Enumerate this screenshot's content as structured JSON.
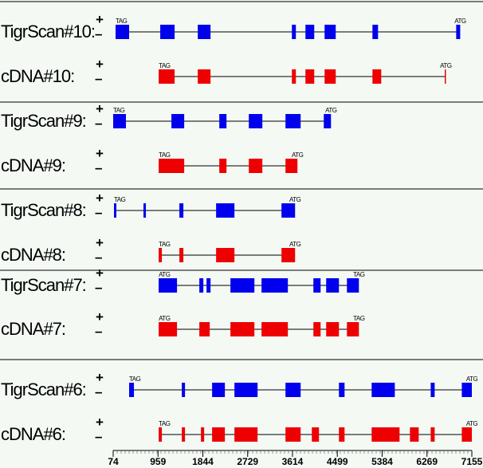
{
  "chart_data": {
    "type": "gene-structure",
    "strand_plus": "+",
    "strand_minus": "–",
    "xlim": [
      74,
      7155
    ],
    "xticks": [
      74,
      959,
      1844,
      2729,
      3614,
      4499,
      5384,
      6269,
      7155
    ],
    "tracks": [
      {
        "name": "TigrScan#10:",
        "color": "#0000ee",
        "start_label": "TAG",
        "end_label": "ATG",
        "span": [
          121,
          6925
        ],
        "exons": [
          [
            121,
            389
          ],
          [
            1003,
            1287
          ],
          [
            1744,
            1996
          ],
          [
            3602,
            3681
          ],
          [
            3870,
            4043
          ],
          [
            4248,
            4468
          ],
          [
            5193,
            5303
          ],
          [
            6846,
            6925
          ]
        ]
      },
      {
        "name": "cDNA#10:",
        "color": "#ee0000",
        "start_label": "TAG",
        "end_label": "ATG",
        "span": [
          972,
          6640
        ],
        "exons": [
          [
            972,
            1287
          ],
          [
            1744,
            1996
          ],
          [
            3602,
            3681
          ],
          [
            3870,
            4043
          ],
          [
            4248,
            4468
          ],
          [
            5193,
            5366
          ],
          [
            6620,
            6640
          ]
        ]
      },
      {
        "name": "TigrScan#9:",
        "color": "#0000ee",
        "start_label": "TAG",
        "end_label": "ATG",
        "span": [
          74,
          4374
        ],
        "exons": [
          [
            74,
            326
          ],
          [
            1224,
            1476
          ],
          [
            2169,
            2311
          ],
          [
            2752,
            3019
          ],
          [
            3476,
            3775
          ],
          [
            4232,
            4374
          ]
        ]
      },
      {
        "name": "cDNA#9:",
        "color": "#ee0000",
        "start_label": "TAG",
        "end_label": "ATG",
        "span": [
          972,
          3712
        ],
        "exons": [
          [
            972,
            1476
          ],
          [
            2169,
            2311
          ],
          [
            2752,
            3019
          ],
          [
            3476,
            3712
          ]
        ]
      },
      {
        "name": "TigrScan#8:",
        "color": "#0000ee",
        "start_label": "TAG",
        "end_label": "ATG",
        "span": [
          90,
          3665
        ],
        "exons": [
          [
            90,
            137
          ],
          [
            672,
            720
          ],
          [
            1381,
            1460
          ],
          [
            2106,
            2468
          ],
          [
            3397,
            3665
          ]
        ]
      },
      {
        "name": "cDNA#8:",
        "color": "#ee0000",
        "start_label": "TAG",
        "end_label": "ATG",
        "span": [
          972,
          3665
        ],
        "exons": [
          [
            972,
            1035
          ],
          [
            1381,
            1460
          ],
          [
            2106,
            2468
          ],
          [
            3397,
            3665
          ]
        ]
      },
      {
        "name": "TigrScan#7:",
        "color": "#0000ee",
        "start_label": "ATG",
        "end_label": "TAG",
        "span": [
          972,
          4925
        ],
        "exons": [
          [
            972,
            1334
          ],
          [
            1775,
            1854
          ],
          [
            1917,
            1996
          ],
          [
            2389,
            2862
          ],
          [
            3003,
            3523
          ],
          [
            4027,
            4169
          ],
          [
            4279,
            4531
          ],
          [
            4689,
            4925
          ]
        ]
      },
      {
        "name": "cDNA#7:",
        "color": "#ee0000",
        "start_label": "ATG",
        "end_label": "TAG",
        "span": [
          972,
          4925
        ],
        "exons": [
          [
            972,
            1334
          ],
          [
            1775,
            1980
          ],
          [
            2389,
            2862
          ],
          [
            3003,
            3523
          ],
          [
            4027,
            4169
          ],
          [
            4279,
            4531
          ],
          [
            4689,
            4925
          ]
        ]
      },
      {
        "name": "TigrScan#6:",
        "color": "#0000ee",
        "start_label": "TAG",
        "end_label": "ATG",
        "span": [
          389,
          7155
        ],
        "exons": [
          [
            389,
            484
          ],
          [
            1429,
            1492
          ],
          [
            2027,
            2279
          ],
          [
            2468,
            2925
          ],
          [
            3476,
            3775
          ],
          [
            4531,
            4642
          ],
          [
            5177,
            5634
          ],
          [
            6343,
            6421
          ],
          [
            6957,
            7155
          ]
        ]
      },
      {
        "name": "cDNA#6:",
        "color": "#ee0000",
        "start_label": "TAG",
        "end_label": "ATG",
        "span": [
          972,
          7155
        ],
        "exons": [
          [
            972,
            1035
          ],
          [
            1429,
            1492
          ],
          [
            1807,
            1870
          ],
          [
            2027,
            2279
          ],
          [
            2468,
            2925
          ],
          [
            3476,
            3775
          ],
          [
            3996,
            4137
          ],
          [
            4531,
            4642
          ],
          [
            5177,
            5728
          ],
          [
            5933,
            6106
          ],
          [
            6343,
            6421
          ],
          [
            6957,
            7155
          ]
        ]
      }
    ]
  }
}
